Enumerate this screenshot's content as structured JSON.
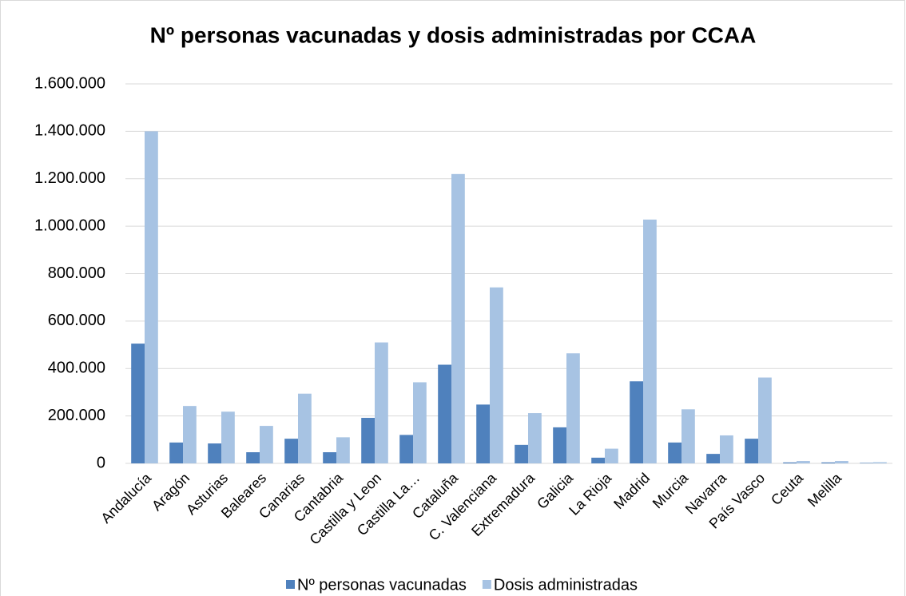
{
  "chart_data": {
    "type": "bar",
    "title": "Nº personas vacunadas y dosis administradas por CCAA",
    "categories": [
      "Andalucía",
      "Aragón",
      "Asturias",
      "Baleares",
      "Canarias",
      "Cantabria",
      "Castilla y Leon",
      "Castilla La…",
      "Cataluña",
      "C. Valenciana",
      "Extremadura",
      "Galicia",
      "La Rioja",
      "Madrid",
      "Murcia",
      "Navarra",
      "País Vasco",
      "Ceuta",
      "Melilla",
      null
    ],
    "series": [
      {
        "name": "Nº personas vacunadas",
        "color": "#4f81bd",
        "values": [
          505000,
          88000,
          84000,
          47000,
          104000,
          47000,
          192000,
          120000,
          416000,
          248000,
          78000,
          152000,
          24000,
          346000,
          88000,
          40000,
          104000,
          4000,
          4000,
          2000
        ]
      },
      {
        "name": "Dosis administradas",
        "color": "#a7c3e3",
        "values": [
          1400000,
          242000,
          218000,
          158000,
          294000,
          110000,
          510000,
          342000,
          1220000,
          742000,
          212000,
          464000,
          62000,
          1028000,
          228000,
          118000,
          362000,
          10000,
          10000,
          5000
        ]
      }
    ],
    "ylim": [
      0,
      1600000
    ],
    "yticks": [
      0,
      {
        "value": 200000,
        "label": "200.000"
      },
      {
        "value": 400000,
        "label": "400.000"
      },
      {
        "value": 600000,
        "label": "600.000"
      },
      {
        "value": 800000,
        "label": "800.000"
      },
      {
        "value": 1000000,
        "label": "1.000.000"
      },
      {
        "value": 1200000,
        "label": "1.200.000"
      },
      {
        "value": 1400000,
        "label": "1.400.000"
      },
      {
        "value": 1600000,
        "label": "1.600.000"
      }
    ],
    "grid": true,
    "legend": "bottom"
  }
}
